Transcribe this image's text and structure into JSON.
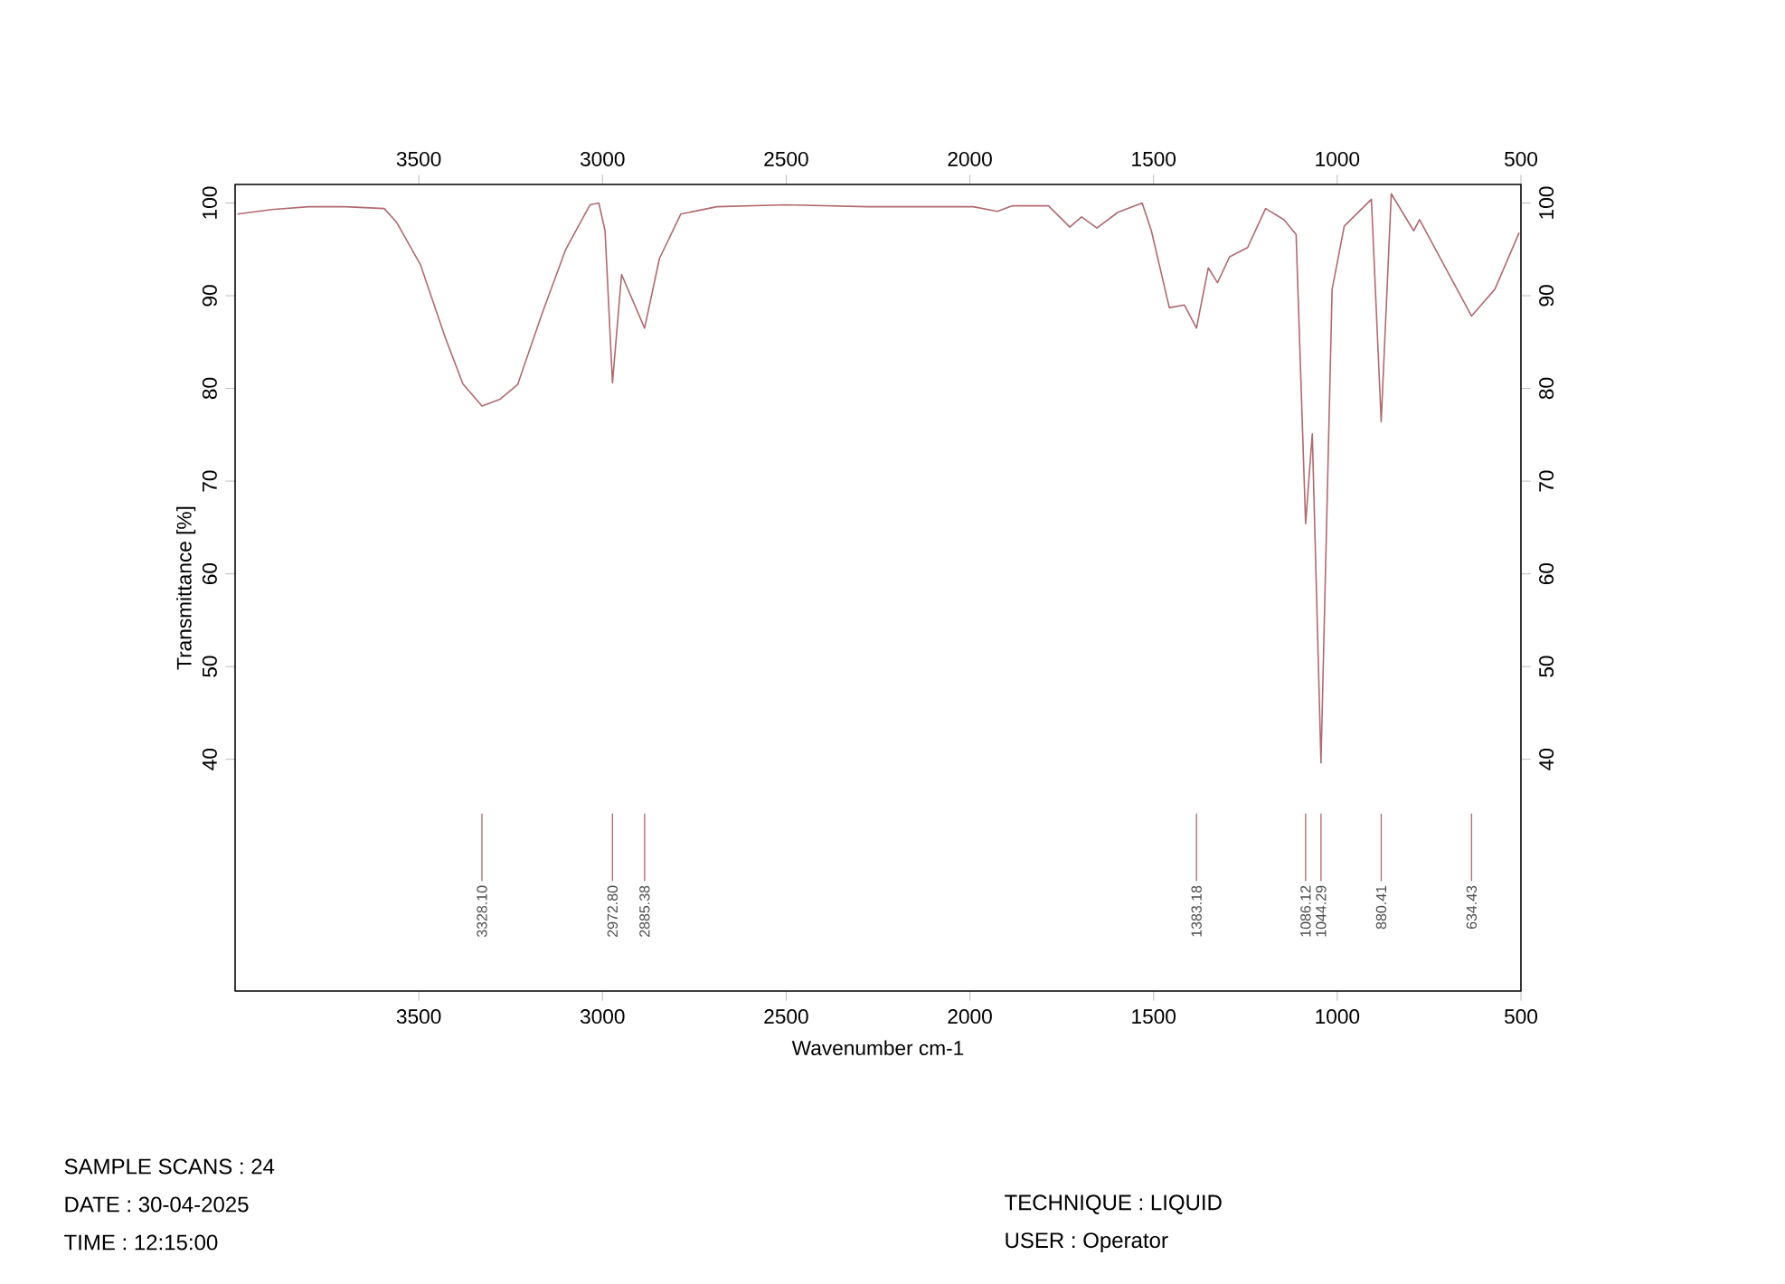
{
  "chart_data": {
    "type": "line",
    "xlabel": "Wavenumber cm-1",
    "ylabel": "Transmittance [%]",
    "xlim": [
      4000,
      500
    ],
    "xticks": [
      3500,
      3000,
      2500,
      2000,
      1500,
      1000,
      500
    ],
    "x2lim": [
      4000,
      500
    ],
    "x2ticks": [
      3500,
      3000,
      2500,
      2000,
      1500,
      1000,
      500
    ],
    "ylim": [
      15,
      102
    ],
    "yticks": [
      40,
      50,
      60,
      70,
      80,
      90,
      100
    ],
    "y2lim": [
      15,
      102
    ],
    "y2ticks": [
      40,
      50,
      60,
      70,
      80,
      90,
      100
    ],
    "grid": false,
    "series": [
      {
        "color": "#b06a70",
        "x": [
          3994,
          3900,
          3800,
          3700,
          3594,
          3560,
          3495,
          3428,
          3380,
          3328.1,
          3280,
          3231,
          3165,
          3100,
          3034,
          3010,
          2993,
          2972.8,
          2948,
          2885.38,
          2845,
          2787,
          2689,
          2500,
          2278,
          1991,
          1925,
          1884,
          1786,
          1728,
          1696,
          1654,
          1597,
          1531,
          1506,
          1457,
          1416,
          1383.18,
          1351,
          1326,
          1293,
          1244,
          1195,
          1145,
          1112,
          1086.12,
          1068,
          1044.29,
          1014,
          981,
          907,
          880.41,
          853,
          792,
          776,
          634.43,
          571,
          505
        ],
        "values": [
          98.8,
          99.3,
          99.6,
          99.6,
          99.4,
          97.9,
          93.3,
          85.5,
          80.5,
          78.1,
          78.8,
          80.4,
          88.0,
          95.0,
          99.8,
          100.0,
          97.0,
          80.6,
          92.3,
          86.5,
          94.0,
          98.8,
          99.6,
          99.8,
          99.6,
          99.6,
          99.1,
          99.7,
          99.7,
          97.4,
          98.5,
          97.3,
          99.0,
          100.0,
          97.0,
          88.7,
          89.0,
          86.5,
          93.0,
          91.4,
          94.2,
          95.2,
          99.4,
          98.2,
          96.6,
          65.4,
          75.1,
          39.6,
          90.7,
          97.5,
          100.4,
          76.4,
          101.0,
          97.0,
          98.2,
          87.8,
          90.7,
          96.8
        ]
      }
    ],
    "annotations": [
      "SAMPLE SCANS : 24",
      "DATE : 30-04-2025",
      "TIME : 12:15:00",
      "TECHNIQUE : LIQUID",
      "USER : Operator"
    ],
    "ref_lines": [
      {
        "axis": "x",
        "value": 3328.1,
        "label": "3328.10",
        "color": "#b06a70"
      },
      {
        "axis": "x",
        "value": 2972.8,
        "label": "2972.80",
        "color": "#b06a70"
      },
      {
        "axis": "x",
        "value": 2885.38,
        "label": "2885.38",
        "color": "#b06a70"
      },
      {
        "axis": "x",
        "value": 1383.18,
        "label": "1383.18",
        "color": "#b06a70"
      },
      {
        "axis": "x",
        "value": 1086.12,
        "label": "1086.12",
        "color": "#b06a70"
      },
      {
        "axis": "x",
        "value": 1044.29,
        "label": "1044.29",
        "color": "#b06a70"
      },
      {
        "axis": "x",
        "value": 880.41,
        "label": "880.41",
        "color": "#b06a70"
      },
      {
        "axis": "x",
        "value": 634.43,
        "label": "634.43",
        "color": "#b06a70"
      }
    ]
  }
}
